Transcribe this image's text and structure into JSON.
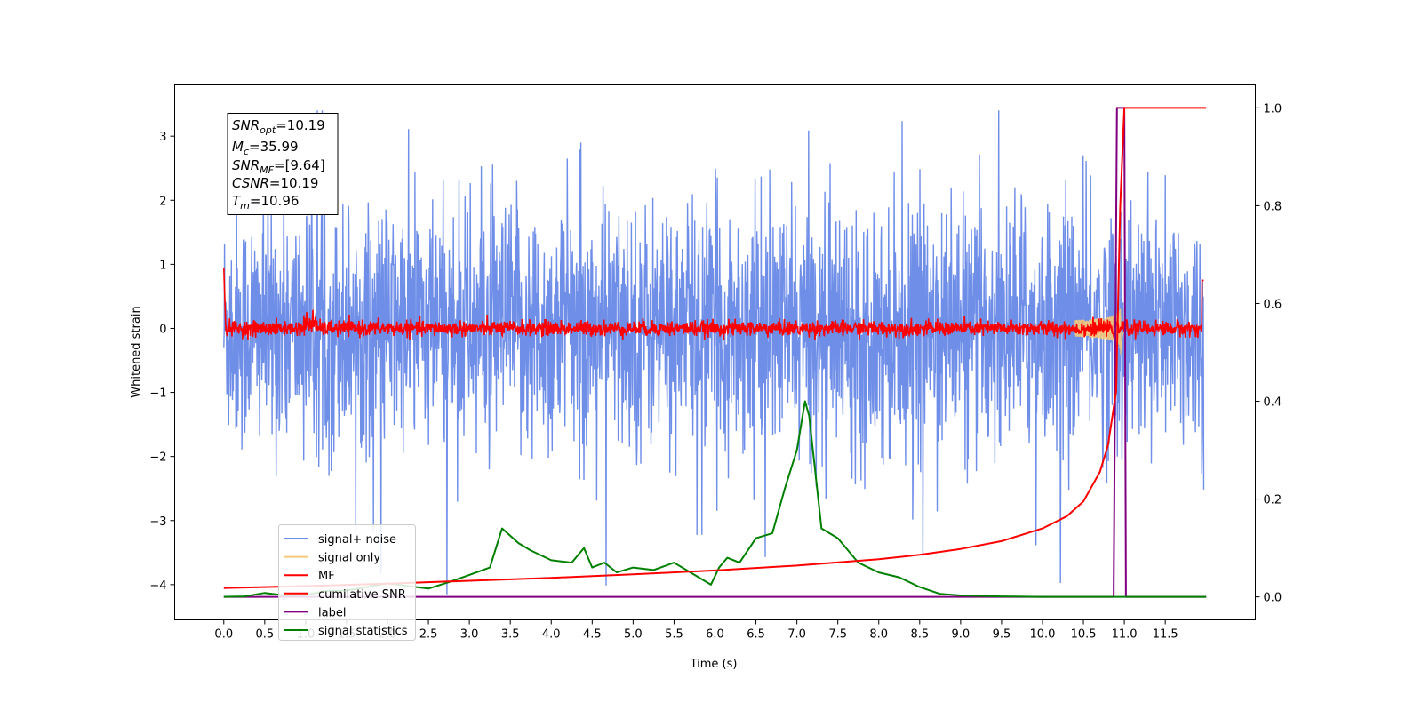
{
  "chart_data": {
    "type": "line",
    "xlabel": "Time (s)",
    "ylabel": "Whitened strain",
    "xlim": [
      -0.6,
      12.6
    ],
    "ylim": [
      -4.55,
      3.8
    ],
    "y2lim": [
      -0.047,
      1.047
    ],
    "x_ticks": [
      "0.0",
      "0.5",
      "1.0",
      "1.5",
      "2.0",
      "2.5",
      "3.0",
      "3.5",
      "4.0",
      "4.5",
      "5.0",
      "5.5",
      "6.0",
      "6.5",
      "7.0",
      "7.5",
      "8.0",
      "8.5",
      "9.0",
      "9.5",
      "10.0",
      "10.5",
      "11.0",
      "11.5"
    ],
    "y_ticks": [
      "3",
      "2",
      "1",
      "0",
      "−1",
      "−2",
      "−3",
      "−4"
    ],
    "y2_ticks": [
      "1.0",
      "0.8",
      "0.6",
      "0.4",
      "0.2",
      "0.0"
    ],
    "grid": false,
    "legend_position": "lower-left",
    "info_box": {
      "snr_opt": {
        "base": "SNR",
        "sub": "opt",
        "value": "=10.19"
      },
      "mc": {
        "base": "M",
        "sub": "c",
        "value": "=35.99"
      },
      "snr_mf": {
        "base": "SNR",
        "sub": "MF",
        "value": "=[9.64]"
      },
      "csnr": {
        "base": "CSNR",
        "value": "=10.19"
      },
      "tm": {
        "base": "T",
        "sub": "m",
        "value": "=10.96"
      }
    },
    "series": [
      {
        "name": "signal+ noise",
        "color": "#6f8ee8",
        "axis": "left",
        "note": "noise band approx ±1.6, peaks to ±3.4",
        "range": [
          -4.15,
          3.4
        ]
      },
      {
        "name": "signal only",
        "color": "#f5c97a",
        "axis": "left",
        "merger_time": 10.96,
        "peak_amplitude": 0.45
      },
      {
        "name": "MF",
        "color": "#ff0000",
        "axis": "left",
        "band": [
          -0.15,
          0.15
        ]
      },
      {
        "name": "cumilative SNR",
        "color": "#ff0000",
        "axis": "right",
        "x": [
          0.0,
          1.0,
          2.0,
          3.0,
          4.0,
          5.0,
          6.0,
          7.0,
          8.0,
          8.5,
          9.0,
          9.5,
          10.0,
          10.3,
          10.5,
          10.7,
          10.8,
          10.9,
          10.95,
          11.0,
          12.0
        ],
        "y": [
          0.018,
          0.022,
          0.027,
          0.033,
          0.039,
          0.046,
          0.054,
          0.064,
          0.077,
          0.086,
          0.098,
          0.114,
          0.14,
          0.165,
          0.195,
          0.255,
          0.31,
          0.42,
          0.8,
          1.0,
          1.0
        ]
      },
      {
        "name": "label",
        "color": "#800080",
        "axis": "right",
        "x": [
          0.0,
          10.87,
          10.91,
          11.0,
          11.02,
          12.0
        ],
        "y": [
          0.0,
          0.0,
          1.0,
          1.0,
          0.0,
          0.0
        ]
      },
      {
        "name": "signal statistics",
        "color": "#008000",
        "axis": "right",
        "x": [
          0.0,
          0.25,
          0.5,
          0.75,
          1.0,
          1.25,
          1.5,
          1.75,
          2.0,
          2.25,
          2.5,
          2.75,
          3.0,
          3.25,
          3.4,
          3.6,
          3.75,
          4.0,
          4.25,
          4.4,
          4.5,
          4.65,
          4.8,
          5.0,
          5.25,
          5.5,
          5.75,
          5.95,
          6.05,
          6.15,
          6.3,
          6.5,
          6.7,
          6.85,
          7.0,
          7.1,
          7.15,
          7.3,
          7.5,
          7.75,
          8.0,
          8.25,
          8.5,
          8.75,
          9.0,
          9.5,
          10.0,
          11.0,
          12.0
        ],
        "y": [
          0.0,
          0.001,
          0.008,
          0.003,
          0.004,
          0.012,
          0.013,
          0.02,
          0.028,
          0.022,
          0.017,
          0.03,
          0.045,
          0.06,
          0.14,
          0.11,
          0.095,
          0.075,
          0.07,
          0.1,
          0.06,
          0.07,
          0.05,
          0.06,
          0.055,
          0.07,
          0.045,
          0.025,
          0.06,
          0.08,
          0.07,
          0.12,
          0.13,
          0.22,
          0.3,
          0.4,
          0.37,
          0.14,
          0.12,
          0.07,
          0.05,
          0.04,
          0.02,
          0.006,
          0.003,
          0.001,
          0.0,
          0.0,
          0.0
        ]
      }
    ]
  }
}
